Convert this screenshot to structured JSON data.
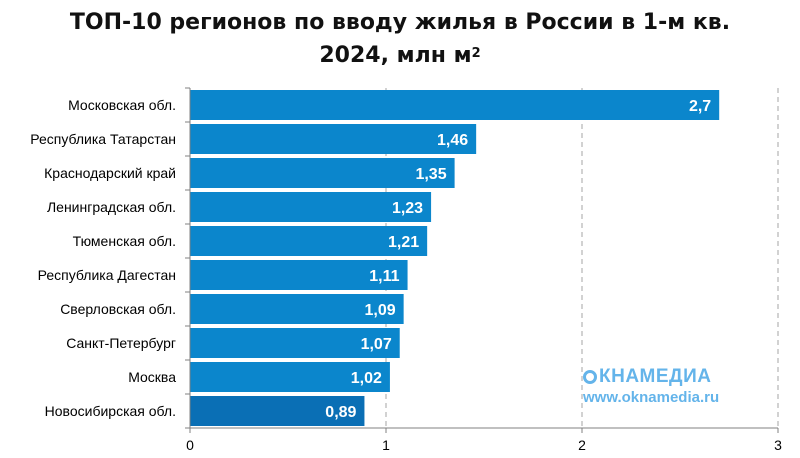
{
  "title": {
    "line1": "ТОП-10 регионов по вводу жилья в России в 1-м кв.",
    "line2": "2024, млн м",
    "sup": "2"
  },
  "watermark": {
    "logo": "КНАМЕДИА",
    "url": "www.oknamedia.ru"
  },
  "colors": {
    "bar": "#0b86cc",
    "bar_last": "#0a6fb5",
    "grid": "#a6a6a6",
    "axis": "#808080"
  },
  "chart_data": {
    "type": "bar",
    "orientation": "horizontal",
    "categories": [
      "Московская обл.",
      "Республика Татарстан",
      "Краснодарский край",
      "Ленинградская обл.",
      "Тюменская обл.",
      "Республика Дагестан",
      "Сверловская обл.",
      "Санкт-Петербург",
      "Москва",
      "Новосибирская обл."
    ],
    "values": [
      2.7,
      1.46,
      1.35,
      1.23,
      1.21,
      1.11,
      1.09,
      1.07,
      1.02,
      0.89
    ],
    "value_labels": [
      "2,7",
      "1,46",
      "1,35",
      "1,23",
      "1,21",
      "1,11",
      "1,09",
      "1,07",
      "1,02",
      "0,89"
    ],
    "xlim": [
      0,
      3
    ],
    "xticks": [
      0,
      1,
      2,
      3
    ],
    "xtick_labels": [
      "0",
      "1",
      "2",
      "3"
    ],
    "grid": "vertical dashed"
  }
}
